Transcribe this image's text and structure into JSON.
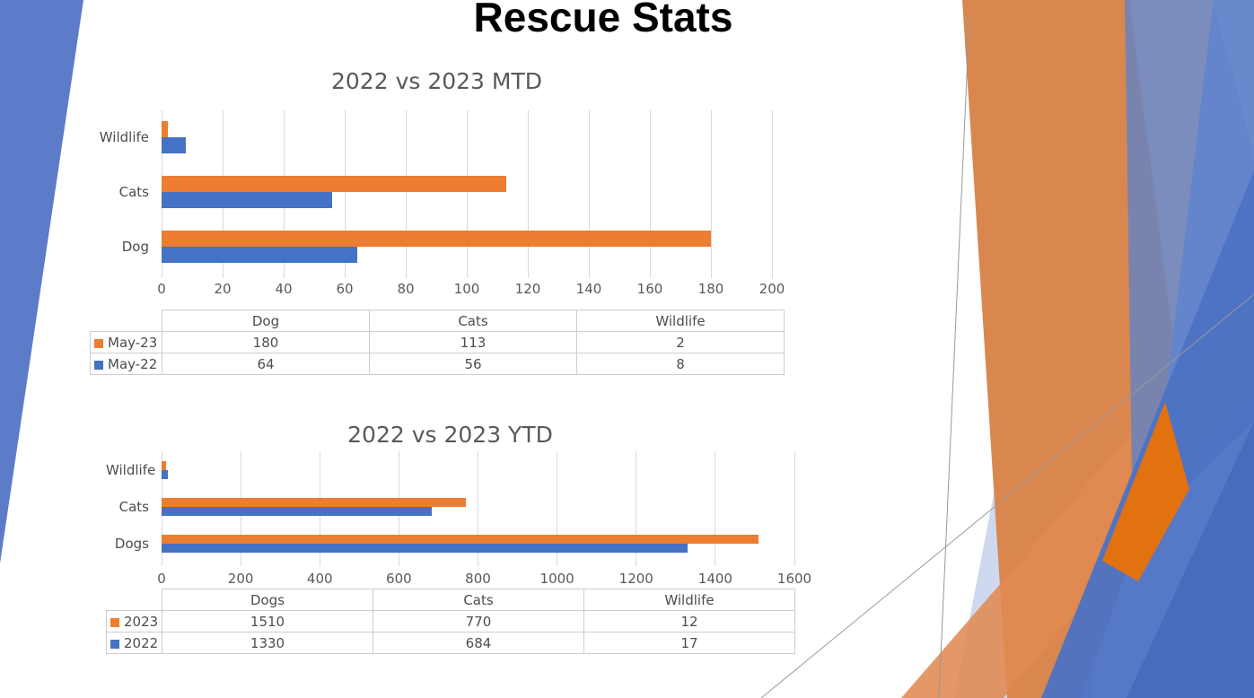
{
  "slide": {
    "title": "Rescue Stats"
  },
  "colors": {
    "accent_orange": "#ED7D31",
    "accent_blue": "#4472C4",
    "left_wedge_blue": "#5C7CC9",
    "gridline_gray": "#D9D9D9",
    "axis_text_gray": "#595959",
    "table_border_gray": "#CFCDCB"
  },
  "chart_data": [
    {
      "type": "bar",
      "orientation": "horizontal",
      "title": "2022 vs 2023 MTD",
      "categories_top_to_bottom": [
        "Wildlife",
        "Cats",
        "Dog"
      ],
      "series": [
        {
          "name": "May-23",
          "color": "#ED7D31",
          "values": {
            "Dog": 180,
            "Cats": 113,
            "Wildlife": 2
          }
        },
        {
          "name": "May-22",
          "color": "#4472C4",
          "values": {
            "Dog": 64,
            "Cats": 56,
            "Wildlife": 8
          }
        }
      ],
      "xlim": [
        0,
        200
      ],
      "xticks": [
        0,
        20,
        40,
        60,
        80,
        100,
        120,
        140,
        160,
        180,
        200
      ],
      "grid": true,
      "legend_position": "table-left",
      "table_headers": [
        "Dog",
        "Cats",
        "Wildlife"
      ]
    },
    {
      "type": "bar",
      "orientation": "horizontal",
      "title": "2022 vs 2023 YTD",
      "categories_top_to_bottom": [
        "Wildlife",
        "Cats",
        "Dogs"
      ],
      "series": [
        {
          "name": "2023",
          "color": "#ED7D31",
          "values": {
            "Dogs": 1510,
            "Cats": 770,
            "Wildlife": 12
          }
        },
        {
          "name": "2022",
          "color": "#4472C4",
          "values": {
            "Dogs": 1330,
            "Cats": 684,
            "Wildlife": 17
          }
        }
      ],
      "xlim": [
        0,
        1600
      ],
      "xticks": [
        0,
        200,
        400,
        600,
        800,
        1000,
        1200,
        1400,
        1600
      ],
      "grid": true,
      "legend_position": "table-left",
      "table_headers": [
        "Dogs",
        "Cats",
        "Wildlife"
      ]
    }
  ]
}
